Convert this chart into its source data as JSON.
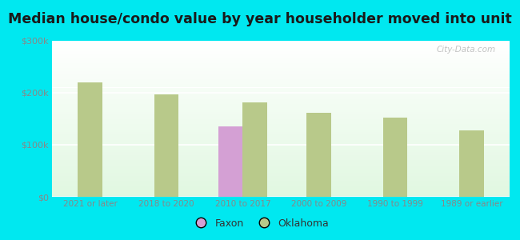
{
  "title": "Median house/condo value by year householder moved into unit",
  "categories": [
    "2021 or later",
    "2018 to 2020",
    "2010 to 2017",
    "2000 to 2009",
    "1990 to 1999",
    "1989 or earlier"
  ],
  "faxon_values": [
    null,
    null,
    135000,
    null,
    null,
    null
  ],
  "oklahoma_values": [
    220000,
    197000,
    182000,
    162000,
    152000,
    127000
  ],
  "faxon_color": "#d4a0d4",
  "oklahoma_color": "#b8c98a",
  "bar_width": 0.32,
  "ylim": [
    0,
    300000
  ],
  "yticks": [
    0,
    100000,
    200000,
    300000
  ],
  "ytick_labels": [
    "$0",
    "$100k",
    "$200k",
    "$300k"
  ],
  "plot_bg_top": "#f5fff5",
  "plot_bg_bottom": "#d8f0d8",
  "outer_background": "#00e8f0",
  "title_fontsize": 12.5,
  "watermark": "City-Data.com",
  "legend_faxon": "Faxon",
  "legend_oklahoma": "Oklahoma",
  "grid_color": "#ffffff",
  "tick_color": "#888888",
  "title_color": "#1a1a1a"
}
